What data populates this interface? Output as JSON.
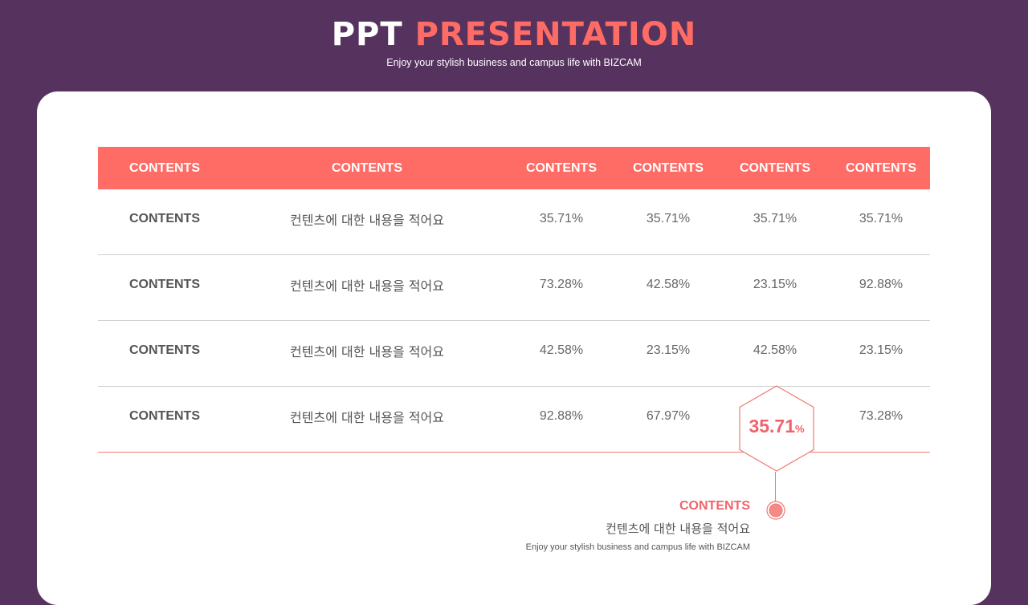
{
  "header": {
    "title_part1": "PPT",
    "title_part2": "PRESENTATION",
    "subtitle": "Enjoy your stylish  business and campus life with  BIZCAM"
  },
  "table": {
    "columns": [
      "CONTENTS",
      "CONTENTS",
      "CONTENTS",
      "CONTENTS",
      "CONTENTS",
      "CONTENTS"
    ],
    "rows": [
      {
        "label": "CONTENTS",
        "desc": "컨텐츠에 대한 내용을 적어요",
        "values": [
          "35.71%",
          "35.71%",
          "35.71%",
          "35.71%"
        ]
      },
      {
        "label": "CONTENTS",
        "desc": "컨텐츠에 대한 내용을 적어요",
        "values": [
          "73.28%",
          "42.58%",
          "23.15%",
          "92.88%"
        ]
      },
      {
        "label": "CONTENTS",
        "desc": "컨텐츠에 대한 내용을 적어요",
        "values": [
          "42.58%",
          "23.15%",
          "42.58%",
          "23.15%"
        ]
      },
      {
        "label": "CONTENTS",
        "desc": "컨텐츠에 대한 내용을 적어요",
        "values": [
          "92.88%",
          "67.97%",
          "",
          "73.28%"
        ]
      }
    ]
  },
  "highlight": {
    "value": "35.71",
    "unit": "%"
  },
  "callout": {
    "title": "CONTENTS",
    "line": "컨텐츠에 대한 내용을 적어요",
    "sub": "Enjoy your stylish business and campus life with BIZCAM"
  },
  "colors": {
    "background": "#56325f",
    "accent": "#ff6b65",
    "card": "#ffffff"
  }
}
